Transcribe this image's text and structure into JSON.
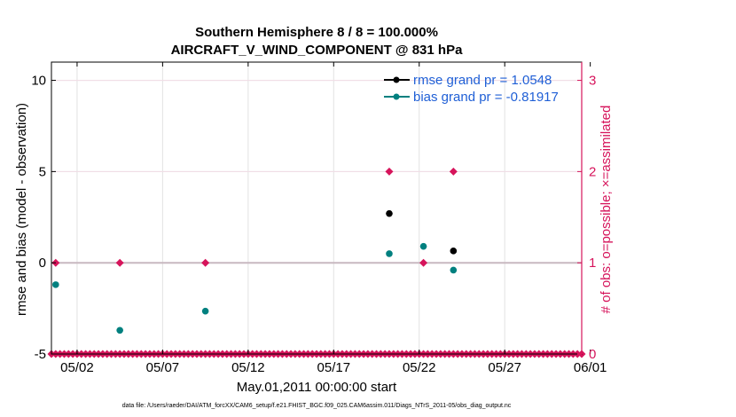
{
  "chart_data": {
    "type": "scatter",
    "title": "Southern Hemisphere 8 / 8 = 100.000%",
    "subtitle": "AIRCRAFT_V_WIND_COMPONENT @ 831 hPa",
    "xlabel": "May.01,2011 00:00:00 start",
    "ylabel": "rmse and bias (model - observation)",
    "y2label": "# of obs: o=possible; ×=assimilated",
    "footer": "data file: /Users/raeder/DAI/ATM_forcXX/CAM6_setup/f.e21.FHIST_BGC.f09_025.CAM6assim.011/Diags_NTrS_2011-05/obs_diag_output.nc",
    "xlim": [
      0.5,
      31.5
    ],
    "ylim": [
      -5,
      11
    ],
    "y2lim": [
      0,
      3.2
    ],
    "x_ticks": [
      {
        "pos": 2,
        "label": "05/02"
      },
      {
        "pos": 7,
        "label": "05/07"
      },
      {
        "pos": 12,
        "label": "05/12"
      },
      {
        "pos": 17,
        "label": "05/17"
      },
      {
        "pos": 22,
        "label": "05/22"
      },
      {
        "pos": 27,
        "label": "05/27"
      },
      {
        "pos": 32,
        "label": "06/01"
      }
    ],
    "y_ticks": [
      {
        "value": -5,
        "label": "-5"
      },
      {
        "value": 0,
        "label": "0"
      },
      {
        "value": 5,
        "label": "5"
      },
      {
        "value": 10,
        "label": "10"
      }
    ],
    "y2_ticks": [
      {
        "value": 0,
        "label": "0"
      },
      {
        "value": 1,
        "label": "1"
      },
      {
        "value": 2,
        "label": "2"
      },
      {
        "value": 3,
        "label": "3"
      }
    ],
    "grid": true,
    "legend_position": "top-right",
    "series": [
      {
        "name": "rmse grand pr = 1.0548",
        "color": "#000000",
        "axis": "left",
        "x": [
          20.25,
          24.0
        ],
        "y": [
          2.7,
          0.65
        ]
      },
      {
        "name": "bias grand pr = -0.81917",
        "color": "#00807f",
        "axis": "left",
        "x": [
          0.75,
          4.5,
          9.5,
          20.25,
          22.25,
          24.0
        ],
        "y": [
          -1.2,
          -3.7,
          -2.65,
          0.5,
          0.9,
          -0.4
        ]
      },
      {
        "color": "#d6145b",
        "axis": "right",
        "marker": "diamond",
        "x": [
          0.75,
          4.5,
          9.5,
          20.25,
          22.25,
          24.0
        ],
        "y": [
          1,
          1,
          1,
          2,
          1,
          2
        ]
      },
      {
        "color": "#d6145b",
        "axis": "right",
        "marker": "diamond",
        "x_start": 0.5,
        "x_end": 31.5,
        "x_step": 0.25,
        "y_const": 0
      }
    ],
    "colors": {
      "legend_text": "#1f5fd6",
      "right_axis": "#d6145b",
      "zero_line": "#c8b8c0",
      "grid": "#e2e2e2"
    }
  }
}
